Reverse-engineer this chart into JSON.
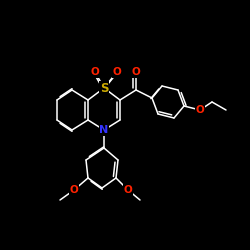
{
  "bg_color": "#000000",
  "bond_color": "#ffffff",
  "atom_colors": {
    "O": "#ff2200",
    "S": "#ccaa00",
    "N": "#3333ff",
    "C": "#ffffff"
  },
  "bond_lw": 1.1,
  "double_off": 2.8,
  "font_size": 7.5
}
